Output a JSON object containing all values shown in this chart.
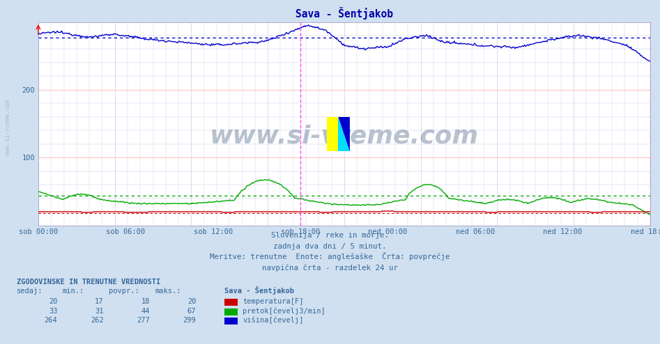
{
  "title": "Sava - Šentjakob",
  "bg_color": "#d0e0f0",
  "plot_bg_color": "#ffffff",
  "grid_color_major_h": "#ffbbbb",
  "grid_color_minor": "#ccccee",
  "x_labels": [
    "sob 00:00",
    "sob 06:00",
    "sob 12:00",
    "sob 18:00",
    "ned 00:00",
    "ned 06:00",
    "ned 12:00",
    "ned 18:00"
  ],
  "y_ticks": [
    100,
    200
  ],
  "subtitle_lines": [
    "Slovenija / reke in morje.",
    "zadnja dva dni / 5 minut.",
    "Meritve: trenutne  Enote: anglešaške  Črta: povprečje",
    "navpična črta - razdelek 24 ur"
  ],
  "watermark": "www.si-vreme.com",
  "legend_title": "Sava - Šentjakob",
  "legend_items": [
    {
      "label": "temperatura[F]",
      "color": "#cc0000"
    },
    {
      "label": "pretok[čevelj3/min]",
      "color": "#00aa00"
    },
    {
      "label": "višina[čevelj]",
      "color": "#0000cc"
    }
  ],
  "table_header": [
    "sedaj:",
    "min.:",
    "povpr.:",
    "maks.:"
  ],
  "table_rows": [
    [
      20,
      17,
      18,
      20
    ],
    [
      33,
      31,
      44,
      67
    ],
    [
      264,
      262,
      277,
      299
    ]
  ],
  "avg_lines": [
    277,
    44,
    18
  ],
  "n_points": 576,
  "temp_color": "#cc0000",
  "flow_color": "#00aa00",
  "height_color": "#0000cc",
  "vline_color": "#ff44ff",
  "tick_color": "#336699",
  "title_color": "#0000aa",
  "text_color": "#336699",
  "y_max": 299
}
